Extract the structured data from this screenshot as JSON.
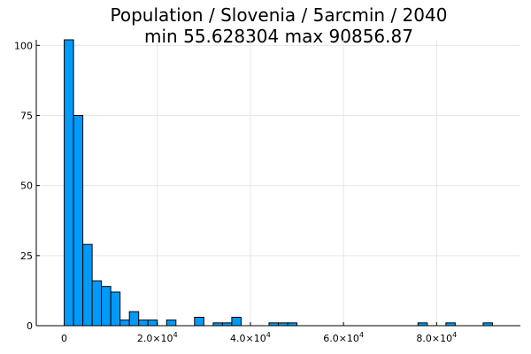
{
  "chart_data": {
    "type": "bar",
    "title": "Population / Slovenia / 5arcmin / 2040",
    "subtitle": "min 55.628304  max 90856.87",
    "xlabel": "",
    "ylabel": "",
    "xlim": [
      -6000,
      98000
    ],
    "ylim": [
      0,
      102
    ],
    "grid": true,
    "bin_width": 2000,
    "bar_color": "#009af9",
    "x_ticks": [
      {
        "value": 0,
        "label": "0"
      },
      {
        "value": 20000,
        "label": "2.0×10",
        "exp": "4"
      },
      {
        "value": 40000,
        "label": "4.0×10",
        "exp": "4"
      },
      {
        "value": 60000,
        "label": "6.0×10",
        "exp": "4"
      },
      {
        "value": 80000,
        "label": "8.0×10",
        "exp": "4"
      }
    ],
    "y_ticks": [
      {
        "value": 0,
        "label": "0"
      },
      {
        "value": 25,
        "label": "25"
      },
      {
        "value": 50,
        "label": "50"
      },
      {
        "value": 75,
        "label": "75"
      },
      {
        "value": 100,
        "label": "100"
      }
    ],
    "bins": [
      {
        "start": 0,
        "end": 2000,
        "count": 102
      },
      {
        "start": 2000,
        "end": 4000,
        "count": 75
      },
      {
        "start": 4000,
        "end": 6000,
        "count": 29
      },
      {
        "start": 6000,
        "end": 8000,
        "count": 16
      },
      {
        "start": 8000,
        "end": 10000,
        "count": 14
      },
      {
        "start": 10000,
        "end": 12000,
        "count": 12
      },
      {
        "start": 12000,
        "end": 14000,
        "count": 2
      },
      {
        "start": 14000,
        "end": 16000,
        "count": 5
      },
      {
        "start": 16000,
        "end": 18000,
        "count": 2
      },
      {
        "start": 18000,
        "end": 20000,
        "count": 2
      },
      {
        "start": 22000,
        "end": 24000,
        "count": 2
      },
      {
        "start": 28000,
        "end": 30000,
        "count": 3
      },
      {
        "start": 32000,
        "end": 34000,
        "count": 1
      },
      {
        "start": 34000,
        "end": 36000,
        "count": 1
      },
      {
        "start": 36000,
        "end": 38000,
        "count": 3
      },
      {
        "start": 44000,
        "end": 46000,
        "count": 1
      },
      {
        "start": 46000,
        "end": 48000,
        "count": 1
      },
      {
        "start": 48000,
        "end": 50000,
        "count": 1
      },
      {
        "start": 76000,
        "end": 78000,
        "count": 1
      },
      {
        "start": 82000,
        "end": 84000,
        "count": 1
      },
      {
        "start": 90000,
        "end": 92000,
        "count": 1
      }
    ]
  }
}
